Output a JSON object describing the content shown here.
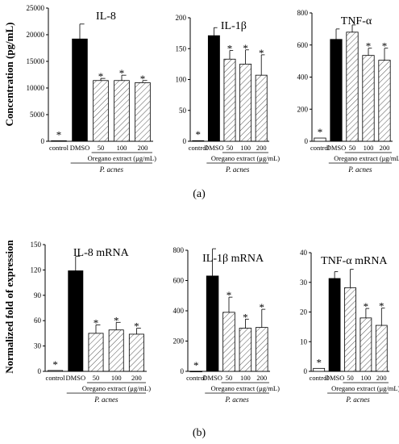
{
  "panel_a_label": "(a)",
  "panel_b_label": "(b)",
  "ylabel_a": "Concentration (pg/mL)",
  "ylabel_b": "Normalized fold of expression",
  "colors": {
    "control": "#ffffff",
    "dmso": "#000000",
    "extract": "hatched"
  },
  "chart_data": [
    {
      "type": "bar",
      "title": "IL-8",
      "categories": [
        "control",
        "DMSO",
        "50",
        "100",
        "200"
      ],
      "values": [
        100,
        19200,
        11400,
        11400,
        11000
      ],
      "errors": [
        0,
        2800,
        400,
        1000,
        400
      ],
      "significant": [
        true,
        false,
        true,
        true,
        true
      ],
      "ylim": [
        0,
        25000
      ],
      "yticks": [
        0,
        5000,
        10000,
        15000,
        20000,
        25000
      ],
      "group_label": "Oregano extract (μg/mL)",
      "pathogen_label": "P. acnes"
    },
    {
      "type": "bar",
      "title": "IL-1β",
      "categories": [
        "control",
        "DMSO",
        "50",
        "100",
        "200"
      ],
      "values": [
        1,
        171,
        133,
        125,
        107
      ],
      "errors": [
        0,
        13,
        14,
        23,
        33
      ],
      "significant": [
        true,
        false,
        true,
        true,
        true
      ],
      "ylim": [
        0,
        200
      ],
      "yticks": [
        0,
        50,
        100,
        150,
        200
      ],
      "group_label": "Oregano extract (μg/mL)",
      "pathogen_label": "P. acnes"
    },
    {
      "type": "bar",
      "title": "TNF-α",
      "categories": [
        "control",
        "DMSO",
        "50",
        "100",
        "200"
      ],
      "values": [
        20,
        635,
        680,
        535,
        505
      ],
      "errors": [
        0,
        65,
        45,
        45,
        75
      ],
      "significant": [
        true,
        false,
        false,
        true,
        true
      ],
      "ylim": [
        0,
        800
      ],
      "yticks": [
        0,
        200,
        400,
        600,
        800
      ],
      "group_label": "Oregano extract (μg/mL)",
      "pathogen_label": "P. acnes"
    },
    {
      "type": "bar",
      "title": "IL-8 mRNA",
      "categories": [
        "control",
        "DMSO",
        "50",
        "100",
        "200"
      ],
      "values": [
        1,
        119,
        45,
        49,
        44
      ],
      "errors": [
        0,
        17,
        10,
        9,
        7
      ],
      "significant": [
        true,
        false,
        true,
        true,
        true
      ],
      "ylim": [
        0,
        150
      ],
      "yticks": [
        0,
        30,
        60,
        90,
        120,
        150
      ],
      "group_label": "Oregano extract (μg/mL)",
      "pathogen_label": "P. acnes"
    },
    {
      "type": "bar",
      "title": "IL-1β mRNA",
      "categories": [
        "control",
        "DMSO",
        "50",
        "100",
        "200"
      ],
      "values": [
        1,
        630,
        390,
        285,
        290
      ],
      "errors": [
        0,
        180,
        100,
        60,
        120
      ],
      "significant": [
        true,
        false,
        true,
        true,
        true
      ],
      "ylim": [
        0,
        800
      ],
      "yticks": [
        0,
        200,
        400,
        600,
        800
      ],
      "group_label": "Oregano extract (μg/mL)",
      "pathogen_label": "P. acnes"
    },
    {
      "type": "bar",
      "title": "TNF-α mRNA",
      "categories": [
        "control",
        "DMSO",
        "50",
        "100",
        "200"
      ],
      "values": [
        1,
        31.3,
        28.2,
        18,
        15.5
      ],
      "errors": [
        0,
        2.3,
        6.2,
        3.2,
        5.8
      ],
      "significant": [
        true,
        false,
        false,
        true,
        true
      ],
      "ylim": [
        0,
        40
      ],
      "yticks": [
        0,
        10,
        20,
        30,
        40
      ],
      "group_label": "Oregano extract (μg/mL)",
      "pathogen_label": "P. acnes"
    }
  ]
}
